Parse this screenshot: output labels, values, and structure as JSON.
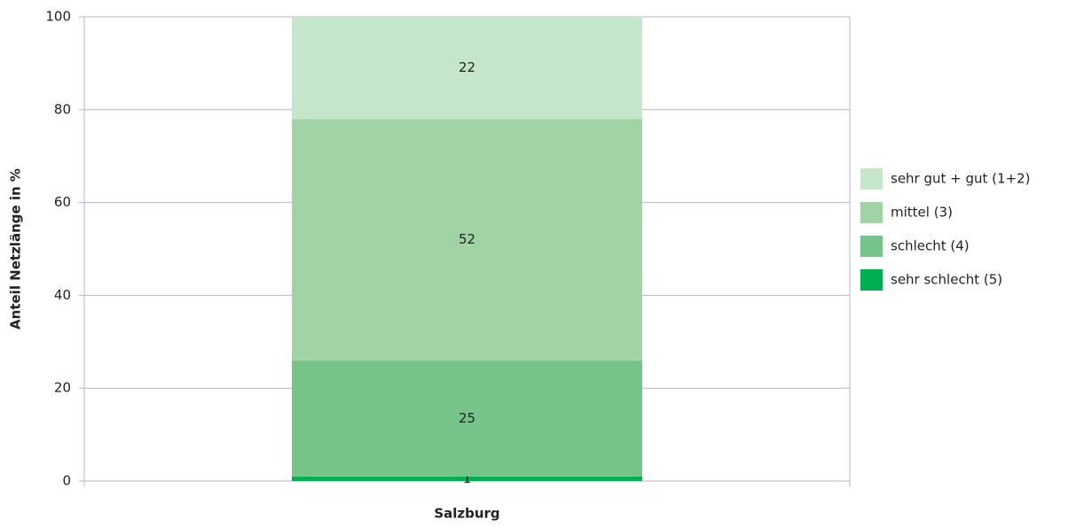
{
  "chart_data": {
    "type": "stacked-bar",
    "ylabel": "Anteil Netzlänge in %",
    "categories": [
      "Salzburg"
    ],
    "series": [
      {
        "name": "sehr schlecht (5)",
        "color": "#00b050",
        "values": [
          1
        ]
      },
      {
        "name": "schlecht (4)",
        "color": "#76c48a",
        "values": [
          25
        ]
      },
      {
        "name": "mittel (3)",
        "color": "#a0d4a6",
        "values": [
          52
        ]
      },
      {
        "name": "sehr gut + gut (1+2)",
        "color": "#c6e6c9",
        "values": [
          22
        ]
      }
    ],
    "ylim": [
      0,
      100
    ],
    "yticks": [
      0,
      20,
      40,
      60,
      80,
      100
    ],
    "grid": true,
    "legend": "right"
  }
}
